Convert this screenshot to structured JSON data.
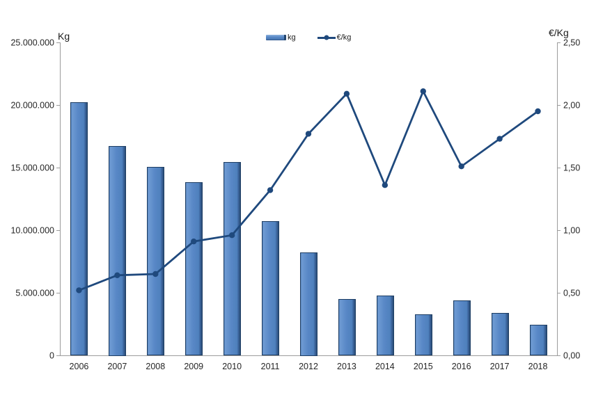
{
  "chart_data": {
    "type": "combo-bar-line",
    "title": "",
    "categories": [
      "2006",
      "2007",
      "2008",
      "2009",
      "2010",
      "2011",
      "2012",
      "2013",
      "2014",
      "2015",
      "2016",
      "2017",
      "2018"
    ],
    "series": [
      {
        "name": "kg",
        "type": "bar",
        "axis": "left",
        "values": [
          20200000,
          16750000,
          15050000,
          13850000,
          15450000,
          10700000,
          8250000,
          4500000,
          4800000,
          3300000,
          4400000,
          3400000,
          2450000
        ]
      },
      {
        "name": "€/kg",
        "type": "line",
        "axis": "right",
        "values": [
          0.52,
          0.64,
          0.65,
          0.91,
          0.96,
          1.32,
          1.77,
          2.09,
          1.36,
          2.11,
          1.51,
          1.73,
          1.95
        ]
      }
    ],
    "left_axis": {
      "title": "Kg",
      "min": 0,
      "max": 25000000,
      "step": 5000000,
      "tick_labels": [
        "0",
        "5.000.000",
        "10.000.000",
        "15.000.000",
        "20.000.000",
        "25.000.000"
      ]
    },
    "right_axis": {
      "title": "€/Kg",
      "min": 0,
      "max": 2.5,
      "step": 0.5,
      "tick_labels": [
        "0,00",
        "0,50",
        "1,00",
        "1,50",
        "2,00",
        "2,50"
      ]
    },
    "x_axis": {
      "labels": [
        "2006",
        "2007",
        "2008",
        "2009",
        "2010",
        "2011",
        "2012",
        "2013",
        "2014",
        "2015",
        "2016",
        "2017",
        "2018"
      ]
    },
    "legend": {
      "position": "top-center",
      "items": [
        {
          "label": "kg",
          "marker": "bar"
        },
        {
          "label": "€/kg",
          "marker": "line"
        }
      ]
    },
    "grid": false,
    "colors": {
      "bar_fill": "#4f81bd",
      "bar_edge": "#1d3d63",
      "line": "#1f497d",
      "axis_line": "#9b9b9b",
      "text": "#262626",
      "background": "#ffffff"
    }
  }
}
